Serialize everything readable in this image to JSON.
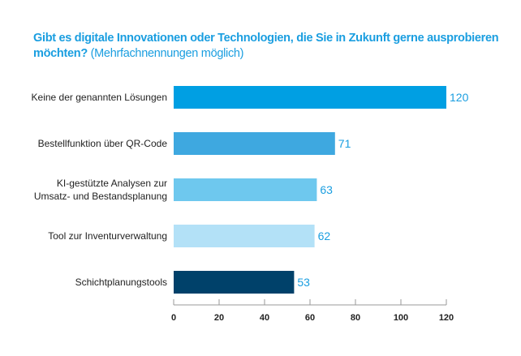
{
  "chart_data": {
    "type": "bar",
    "orientation": "horizontal",
    "title": "Gibt es digitale Innovationen oder Technologien, die Sie in Zukunft gerne ausprobieren möchten?",
    "subtitle": "(Mehrfachnennungen möglich)",
    "categories": [
      [
        "Keine der genannten Lösungen"
      ],
      [
        "Bestellfunktion über QR-Code"
      ],
      [
        "KI-gestützte Analysen zur",
        "Umsatz- und Bestandsplanung"
      ],
      [
        "Tool zur Inventurverwaltung"
      ],
      [
        "Schichtplanungstools"
      ]
    ],
    "values": [
      120,
      71,
      63,
      62,
      53
    ],
    "colors": [
      "#009fe3",
      "#3ea8e0",
      "#6ec8ee",
      "#b3e1f7",
      "#00416a"
    ],
    "value_label_color": "#1a9ee0",
    "xlim": [
      0,
      120
    ],
    "xticks": [
      0,
      20,
      40,
      60,
      80,
      100,
      120
    ],
    "xlabel": "",
    "ylabel": "",
    "grid": false
  }
}
